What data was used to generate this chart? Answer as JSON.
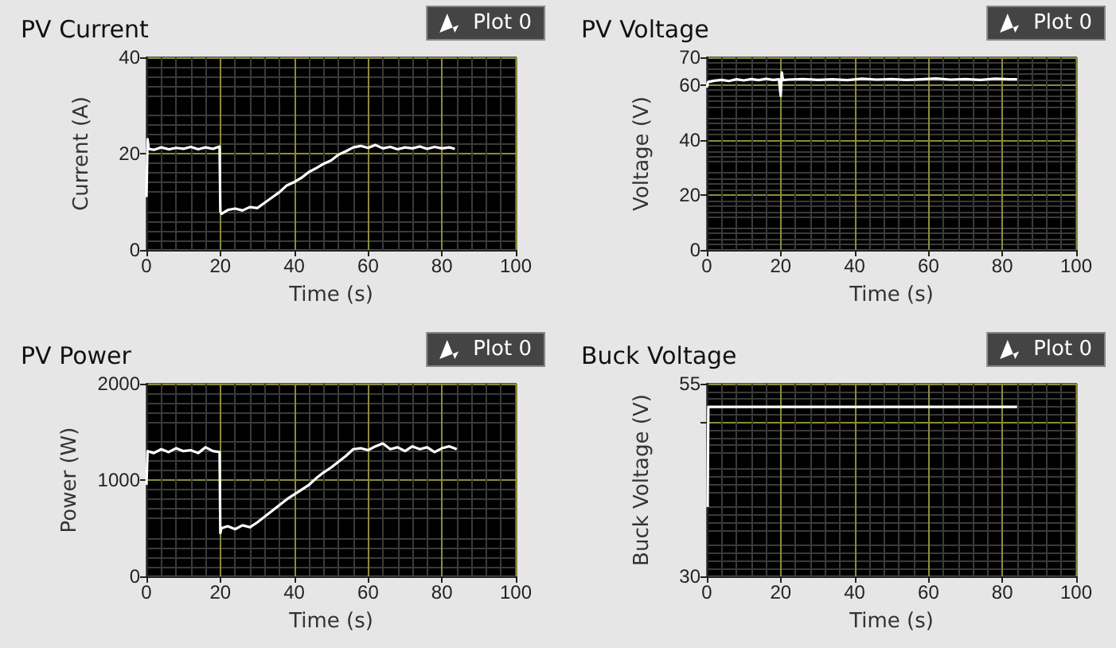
{
  "chart_data": [
    {
      "type": "line",
      "title": "PV Current",
      "xlabel": "Time (s)",
      "ylabel": "Current (A)",
      "xlim": [
        0,
        100
      ],
      "xticks": [
        0,
        20,
        40,
        60,
        80,
        100
      ],
      "ylim": [
        0,
        40
      ],
      "yticks": [
        0,
        20,
        40
      ],
      "grid": true,
      "legend": "top right",
      "marker": "none",
      "series": [
        {
          "name": "Plot 0",
          "color": "#ffffff",
          "x": [
            0,
            0.3,
            0.6,
            2,
            4,
            6,
            8,
            10,
            12,
            14,
            16,
            18,
            19.8,
            20,
            20.3,
            22,
            24,
            26,
            28,
            30,
            32,
            34,
            36,
            38,
            40,
            42,
            44,
            46,
            48,
            50,
            52,
            54,
            56,
            58,
            60,
            62,
            64,
            66,
            68,
            70,
            72,
            74,
            76,
            78,
            80,
            82,
            83.5
          ],
          "values": [
            11,
            23,
            21,
            20.8,
            21.3,
            20.9,
            21.2,
            21,
            21.4,
            20.9,
            21.3,
            21,
            21.5,
            8,
            7.5,
            8.3,
            8.6,
            8.2,
            8.9,
            8.7,
            9.8,
            10.9,
            12,
            13.4,
            14.1,
            15,
            16.2,
            17,
            17.9,
            18.6,
            19.8,
            20.5,
            21.3,
            21.6,
            21.2,
            21.8,
            21.1,
            21.4,
            20.9,
            21.3,
            21.1,
            21.5,
            21,
            21.4,
            21.1,
            21.3,
            21
          ]
        }
      ]
    },
    {
      "type": "line",
      "title": "PV Voltage",
      "xlabel": "Time (s)",
      "ylabel": "Voltage (V)",
      "xlim": [
        0,
        100
      ],
      "xticks": [
        0,
        20,
        40,
        60,
        80,
        100
      ],
      "ylim": [
        0,
        70
      ],
      "yticks": [
        0,
        20,
        40,
        60,
        70
      ],
      "grid": true,
      "legend": "top right",
      "marker": "none",
      "series": [
        {
          "name": "Plot 0",
          "color": "#ffffff",
          "x": [
            0,
            0.3,
            2,
            4,
            6,
            8,
            10,
            12,
            14,
            16,
            18,
            19.5,
            20,
            20.3,
            20.6,
            22,
            26,
            30,
            34,
            38,
            42,
            46,
            50,
            54,
            58,
            62,
            66,
            70,
            74,
            78,
            82,
            84
          ],
          "values": [
            59,
            61,
            61.5,
            61.8,
            61.4,
            62,
            61.6,
            62.1,
            61.7,
            62.2,
            61.8,
            62,
            56,
            64.5,
            61.7,
            61.9,
            62.1,
            61.8,
            62,
            61.7,
            62.2,
            61.9,
            62.1,
            61.8,
            62,
            62.3,
            61.9,
            62.1,
            61.8,
            62.2,
            62,
            62
          ]
        }
      ]
    },
    {
      "type": "line",
      "title": "PV Power",
      "xlabel": "Time (s)",
      "ylabel": "Power (W)",
      "xlim": [
        0,
        100
      ],
      "xticks": [
        0,
        20,
        40,
        60,
        80,
        100
      ],
      "ylim": [
        0,
        2000
      ],
      "yticks": [
        0,
        1000,
        2000
      ],
      "grid": true,
      "legend": "top right",
      "marker": "none",
      "series": [
        {
          "name": "Plot 0",
          "color": "#ffffff",
          "x": [
            0,
            0.3,
            2,
            4,
            6,
            8,
            10,
            12,
            14,
            16,
            18,
            19.8,
            20,
            20.3,
            22,
            24,
            26,
            28,
            30,
            32,
            34,
            36,
            38,
            40,
            42,
            44,
            46,
            48,
            50,
            52,
            54,
            56,
            58,
            60,
            62,
            64,
            66,
            68,
            70,
            72,
            74,
            76,
            78,
            80,
            82,
            84
          ],
          "values": [
            950,
            1300,
            1280,
            1320,
            1290,
            1330,
            1300,
            1310,
            1280,
            1340,
            1300,
            1290,
            450,
            500,
            520,
            490,
            530,
            510,
            560,
            620,
            680,
            740,
            800,
            850,
            900,
            950,
            1020,
            1080,
            1130,
            1190,
            1250,
            1320,
            1330,
            1310,
            1350,
            1380,
            1320,
            1340,
            1300,
            1350,
            1320,
            1340,
            1290,
            1330,
            1350,
            1320
          ]
        }
      ]
    },
    {
      "type": "line",
      "title": "Buck Voltage",
      "xlabel": "Time (s)",
      "ylabel": "Buck Voltage (V)",
      "xlim": [
        0,
        100
      ],
      "xticks": [
        0,
        20,
        40,
        60,
        80,
        100
      ],
      "ylim": [
        30,
        55
      ],
      "yticks": [
        30,
        {
          "value": 50,
          "label": null
        },
        55
      ],
      "grid": true,
      "legend": "top right",
      "marker": "none",
      "series": [
        {
          "name": "Plot 0",
          "color": "#ffffff",
          "x": [
            0.2,
            0.4,
            84
          ],
          "values": [
            39,
            52,
            52
          ]
        }
      ]
    }
  ]
}
